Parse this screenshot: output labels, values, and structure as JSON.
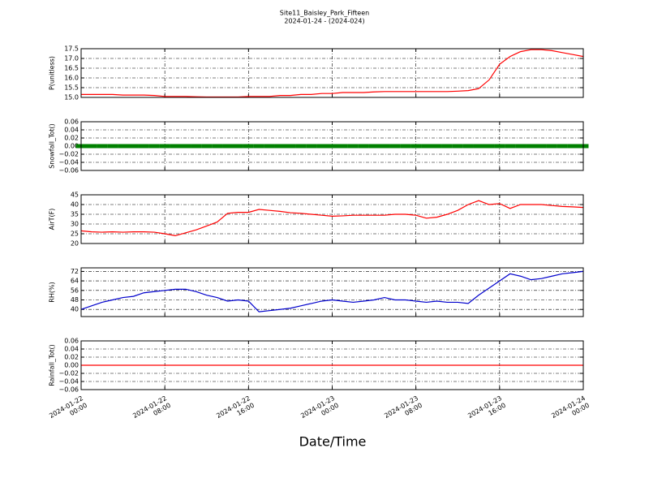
{
  "title": "Site11_Baisley_Park_Fifteen",
  "subtitle": "2024-01-24 - (2024-024)",
  "xlabel": "Date/Time",
  "xlim": [
    "2024-01-22 00:00",
    "2024-01-24 00:00"
  ],
  "xticks": [
    {
      "value": "2024-01-22 00:00",
      "label": "2024-01-22\n00:00"
    },
    {
      "value": "2024-01-22 08:00",
      "label": "2024-01-22\n08:00"
    },
    {
      "value": "2024-01-22 16:00",
      "label": "2024-01-22\n16:00"
    },
    {
      "value": "2024-01-23 00:00",
      "label": "2024-01-23\n00:00"
    },
    {
      "value": "2024-01-23 08:00",
      "label": "2024-01-23\n08:00"
    },
    {
      "value": "2024-01-23 16:00",
      "label": "2024-01-23\n16:00"
    },
    {
      "value": "2024-01-24 00:00",
      "label": "2024-01-24\n00:00"
    }
  ],
  "x": [
    "2024-01-22 00:00",
    "2024-01-22 01:00",
    "2024-01-22 02:00",
    "2024-01-22 03:00",
    "2024-01-22 04:00",
    "2024-01-22 05:00",
    "2024-01-22 06:00",
    "2024-01-22 07:00",
    "2024-01-22 08:00",
    "2024-01-22 09:00",
    "2024-01-22 10:00",
    "2024-01-22 11:00",
    "2024-01-22 12:00",
    "2024-01-22 13:00",
    "2024-01-22 14:00",
    "2024-01-22 15:00",
    "2024-01-22 16:00",
    "2024-01-22 17:00",
    "2024-01-22 18:00",
    "2024-01-22 19:00",
    "2024-01-22 20:00",
    "2024-01-22 21:00",
    "2024-01-22 22:00",
    "2024-01-22 23:00",
    "2024-01-23 00:00",
    "2024-01-23 01:00",
    "2024-01-23 02:00",
    "2024-01-23 03:00",
    "2024-01-23 04:00",
    "2024-01-23 05:00",
    "2024-01-23 06:00",
    "2024-01-23 07:00",
    "2024-01-23 08:00",
    "2024-01-23 09:00",
    "2024-01-23 10:00",
    "2024-01-23 11:00",
    "2024-01-23 12:00",
    "2024-01-23 13:00",
    "2024-01-23 14:00",
    "2024-01-23 15:00",
    "2024-01-23 16:00",
    "2024-01-23 17:00",
    "2024-01-23 18:00",
    "2024-01-23 19:00",
    "2024-01-23 20:00",
    "2024-01-23 21:00",
    "2024-01-23 22:00",
    "2024-01-23 23:00",
    "2024-01-24 00:00"
  ],
  "chart_data": [
    {
      "type": "line",
      "ylabel": "P(unitless)",
      "color": "#ff0000",
      "ylim": [
        15,
        17.5
      ],
      "grid": true,
      "yticks": [
        {
          "value": 15,
          "label": "15.0"
        },
        15.5,
        {
          "value": 16,
          "label": "16.0"
        },
        16.5,
        {
          "value": 17,
          "label": "17.0"
        },
        17.5
      ],
      "values": [
        15.15,
        15.15,
        15.15,
        15.15,
        15.12,
        15.12,
        15.12,
        15.1,
        15.05,
        15.05,
        15.05,
        15.03,
        15.02,
        15.02,
        15.02,
        15.02,
        15.05,
        15.05,
        15.05,
        15.1,
        15.1,
        15.15,
        15.15,
        15.2,
        15.2,
        15.25,
        15.25,
        15.25,
        15.28,
        15.3,
        15.3,
        15.3,
        15.3,
        15.3,
        15.3,
        15.3,
        15.32,
        15.35,
        15.45,
        15.9,
        16.7,
        17.1,
        17.35,
        17.45,
        17.45,
        17.4,
        17.3,
        17.2,
        17.1
      ]
    },
    {
      "type": "scatter",
      "ylabel": "Snowfall_Tot()",
      "color": "#008000",
      "ylim": [
        -0.06,
        0.06
      ],
      "grid": true,
      "yticks": [
        {
          "value": -0.06,
          "label": "−0.06"
        },
        {
          "value": -0.04,
          "label": "−0.04"
        },
        {
          "value": -0.02,
          "label": "−0.02"
        },
        {
          "value": 0,
          "label": "0.00"
        },
        {
          "value": 0.02,
          "label": "0.02"
        },
        {
          "value": 0.04,
          "label": "0.04"
        },
        {
          "value": 0.06,
          "label": "0.06"
        }
      ],
      "values": [
        0,
        0,
        0,
        0,
        0,
        0,
        0,
        0,
        0,
        0,
        0,
        0,
        0,
        0,
        0,
        0,
        0,
        0,
        0,
        0,
        0,
        0,
        0,
        0,
        0,
        0,
        0,
        0,
        0,
        0,
        0,
        0,
        0,
        0,
        0,
        0,
        0,
        0,
        0,
        0,
        0,
        0,
        0,
        0,
        0,
        0,
        0,
        0,
        0
      ]
    },
    {
      "type": "line",
      "ylabel": "AirT(F)",
      "color": "#ff0000",
      "ylim": [
        20,
        45
      ],
      "grid": true,
      "yticks": [
        20,
        25,
        30,
        35,
        40,
        45
      ],
      "values": [
        26.5,
        26,
        25.8,
        26,
        25.8,
        26,
        26,
        25.8,
        25,
        24,
        25.5,
        27,
        29,
        31,
        35.5,
        36,
        36,
        37.5,
        37,
        36.5,
        35.8,
        35.5,
        35,
        34.5,
        34,
        34.2,
        34.5,
        34.5,
        34.5,
        34.5,
        35,
        35,
        34.5,
        33,
        33.5,
        35,
        37,
        40,
        42,
        40,
        40.5,
        38,
        40,
        40,
        40,
        39.5,
        39,
        38.8,
        38.5
      ]
    },
    {
      "type": "line",
      "ylabel": "RH(%)",
      "color": "#0000cc",
      "ylim": [
        34,
        75
      ],
      "grid": true,
      "yticks": [
        40,
        48,
        56,
        64,
        72
      ],
      "values": [
        40,
        43,
        46,
        48,
        50,
        51,
        54,
        55,
        56,
        57,
        57,
        55,
        52,
        50,
        47,
        48,
        47,
        38,
        39,
        40,
        41,
        43,
        45,
        47,
        48,
        47,
        46,
        47,
        48,
        50,
        48,
        48,
        47,
        46,
        47,
        46,
        46,
        45,
        52,
        58,
        64,
        70,
        68,
        65,
        66,
        68,
        70,
        71,
        72
      ]
    },
    {
      "type": "line",
      "ylabel": "Rainfall_Tot()",
      "color": "#ff0000",
      "ylim": [
        -0.06,
        0.06
      ],
      "grid": true,
      "yticks": [
        {
          "value": -0.06,
          "label": "−0.06"
        },
        {
          "value": -0.04,
          "label": "−0.04"
        },
        {
          "value": -0.02,
          "label": "−0.02"
        },
        {
          "value": 0,
          "label": "0.00"
        },
        {
          "value": 0.02,
          "label": "0.02"
        },
        {
          "value": 0.04,
          "label": "0.04"
        },
        {
          "value": 0.06,
          "label": "0.06"
        }
      ],
      "values": [
        0,
        0,
        0,
        0,
        0,
        0,
        0,
        0,
        0,
        0,
        0,
        0,
        0,
        0,
        0,
        0,
        0,
        0,
        0,
        0,
        0,
        0,
        0,
        0,
        0,
        0,
        0,
        0,
        0,
        0,
        0,
        0,
        0,
        0,
        0,
        0,
        0,
        0,
        0,
        0,
        0,
        0,
        0,
        0,
        0,
        0,
        0,
        0,
        0
      ]
    }
  ]
}
